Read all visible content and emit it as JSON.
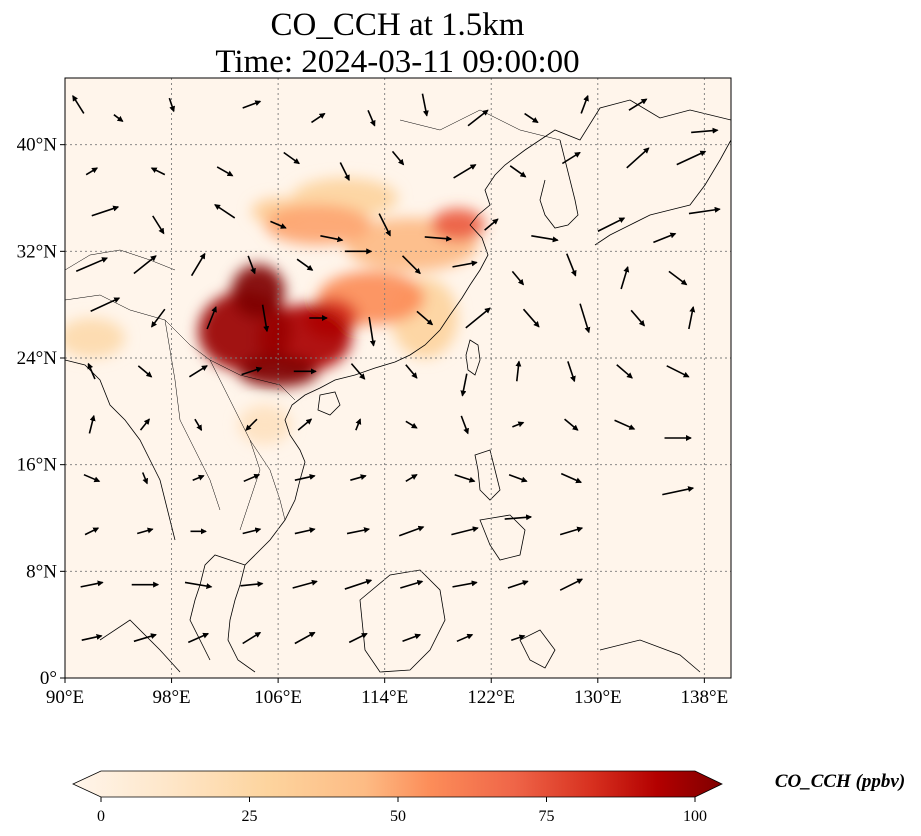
{
  "title": {
    "line1": "CO_CCH at 1.5km",
    "line2": "Time: 2024-03-11 09:00:00"
  },
  "map": {
    "lon_range": [
      90,
      140
    ],
    "lat_range": [
      0,
      45
    ],
    "lon_ticks": [
      {
        "value": 90,
        "label": "90°E"
      },
      {
        "value": 98,
        "label": "98°E"
      },
      {
        "value": 106,
        "label": "106°E"
      },
      {
        "value": 114,
        "label": "114°E"
      },
      {
        "value": 122,
        "label": "122°E"
      },
      {
        "value": 130,
        "label": "130°E"
      },
      {
        "value": 138,
        "label": "138°E"
      }
    ],
    "lat_ticks": [
      {
        "value": 0,
        "label": "0°"
      },
      {
        "value": 8,
        "label": "8°N"
      },
      {
        "value": 16,
        "label": "16°N"
      },
      {
        "value": 24,
        "label": "24°N"
      },
      {
        "value": 32,
        "label": "32°N"
      },
      {
        "value": 40,
        "label": "40°N"
      }
    ],
    "gridlines": "dotted",
    "field_variable": "CO_CCH",
    "wind_vectors": "shown",
    "colormap": "OrRd",
    "colors": {
      "low": "#fff5eb",
      "mid": "#f06a3a",
      "high": "#7f0000",
      "coast": "#000000",
      "grid": "#7a7a7a"
    },
    "plume_regions": [
      {
        "lon": 104.5,
        "lat": 29.0,
        "rx": 2.0,
        "ry": 2.0,
        "value": 100
      },
      {
        "lon": 103.5,
        "lat": 26.0,
        "rx": 3.5,
        "ry": 3.0,
        "value": 95
      },
      {
        "lon": 108.0,
        "lat": 25.5,
        "rx": 3.5,
        "ry": 2.5,
        "value": 92
      },
      {
        "lon": 106.0,
        "lat": 23.0,
        "rx": 3.0,
        "ry": 1.2,
        "value": 100
      },
      {
        "lon": 110.0,
        "lat": 27.0,
        "rx": 2.0,
        "ry": 1.5,
        "value": 80
      },
      {
        "lon": 113.0,
        "lat": 28.5,
        "rx": 4.0,
        "ry": 2.0,
        "value": 55
      },
      {
        "lon": 116.0,
        "lat": 32.5,
        "rx": 5.0,
        "ry": 2.0,
        "value": 45
      },
      {
        "lon": 119.5,
        "lat": 34.0,
        "rx": 2.0,
        "ry": 1.2,
        "value": 70
      },
      {
        "lon": 109.0,
        "lat": 34.0,
        "rx": 4.0,
        "ry": 1.5,
        "value": 50
      },
      {
        "lon": 111.0,
        "lat": 36.0,
        "rx": 4.0,
        "ry": 1.5,
        "value": 30
      },
      {
        "lon": 106.0,
        "lat": 35.0,
        "rx": 2.0,
        "ry": 1.0,
        "value": 35
      },
      {
        "lon": 92.0,
        "lat": 25.5,
        "rx": 2.5,
        "ry": 1.5,
        "value": 25
      },
      {
        "lon": 105.0,
        "lat": 19.0,
        "rx": 2.0,
        "ry": 1.5,
        "value": 18
      },
      {
        "lon": 117.0,
        "lat": 27.0,
        "rx": 2.5,
        "ry": 3.0,
        "value": 30
      }
    ],
    "wind_arrows": [
      {
        "lon": 91,
        "lat": 43,
        "u": -0.5,
        "v": 0.8
      },
      {
        "lon": 94,
        "lat": 42,
        "u": 0.4,
        "v": -0.3
      },
      {
        "lon": 98,
        "lat": 43,
        "u": 0.2,
        "v": -0.6
      },
      {
        "lon": 104,
        "lat": 43,
        "u": 0.8,
        "v": 0.3
      },
      {
        "lon": 109,
        "lat": 42,
        "u": 0.6,
        "v": 0.4
      },
      {
        "lon": 113,
        "lat": 42,
        "u": 0.3,
        "v": -0.7
      },
      {
        "lon": 117,
        "lat": 43,
        "u": 0.2,
        "v": -1.0
      },
      {
        "lon": 121,
        "lat": 42,
        "u": 0.9,
        "v": 0.7
      },
      {
        "lon": 125,
        "lat": 42,
        "u": 0.6,
        "v": -0.4
      },
      {
        "lon": 129,
        "lat": 43,
        "u": 0.3,
        "v": 0.8
      },
      {
        "lon": 133,
        "lat": 43,
        "u": 0.8,
        "v": 0.5
      },
      {
        "lon": 138,
        "lat": 41,
        "u": 1.2,
        "v": 0.1
      },
      {
        "lon": 92,
        "lat": 38,
        "u": 0.5,
        "v": 0.3
      },
      {
        "lon": 97,
        "lat": 38,
        "u": -0.6,
        "v": 0.3
      },
      {
        "lon": 102,
        "lat": 38,
        "u": 0.7,
        "v": -0.4
      },
      {
        "lon": 107,
        "lat": 39,
        "u": 0.7,
        "v": -0.5
      },
      {
        "lon": 111,
        "lat": 38,
        "u": 0.4,
        "v": -0.8
      },
      {
        "lon": 115,
        "lat": 39,
        "u": 0.5,
        "v": -0.6
      },
      {
        "lon": 120,
        "lat": 38,
        "u": 1.0,
        "v": 0.6
      },
      {
        "lon": 124,
        "lat": 38,
        "u": 0.7,
        "v": -0.5
      },
      {
        "lon": 128,
        "lat": 39,
        "u": 0.8,
        "v": 0.5
      },
      {
        "lon": 133,
        "lat": 39,
        "u": 1.0,
        "v": 0.9
      },
      {
        "lon": 137,
        "lat": 39,
        "u": 1.3,
        "v": 0.6
      },
      {
        "lon": 93,
        "lat": 35,
        "u": 1.2,
        "v": 0.4
      },
      {
        "lon": 97,
        "lat": 34,
        "u": 0.5,
        "v": -0.8
      },
      {
        "lon": 102,
        "lat": 35,
        "u": -0.9,
        "v": 0.6
      },
      {
        "lon": 106,
        "lat": 34,
        "u": 0.7,
        "v": -0.3
      },
      {
        "lon": 110,
        "lat": 33,
        "u": 1.0,
        "v": -0.2
      },
      {
        "lon": 114,
        "lat": 34,
        "u": 0.5,
        "v": -1.0
      },
      {
        "lon": 118,
        "lat": 33,
        "u": 1.2,
        "v": -0.1
      },
      {
        "lon": 122,
        "lat": 34,
        "u": 0.6,
        "v": 0.5
      },
      {
        "lon": 126,
        "lat": 33,
        "u": 1.2,
        "v": -0.2
      },
      {
        "lon": 131,
        "lat": 34,
        "u": 1.2,
        "v": 0.6
      },
      {
        "lon": 135,
        "lat": 33,
        "u": 1.0,
        "v": 0.4
      },
      {
        "lon": 138,
        "lat": 35,
        "u": 1.4,
        "v": 0.2
      },
      {
        "lon": 92,
        "lat": 31,
        "u": 1.4,
        "v": 0.6
      },
      {
        "lon": 96,
        "lat": 31,
        "u": 1.0,
        "v": 0.8
      },
      {
        "lon": 100,
        "lat": 31,
        "u": 0.6,
        "v": 1.0
      },
      {
        "lon": 104,
        "lat": 31,
        "u": 0.3,
        "v": -0.8
      },
      {
        "lon": 108,
        "lat": 31,
        "u": 0.7,
        "v": -0.5
      },
      {
        "lon": 112,
        "lat": 32,
        "u": 1.2,
        "v": 0.0
      },
      {
        "lon": 116,
        "lat": 31,
        "u": 0.8,
        "v": -0.8
      },
      {
        "lon": 120,
        "lat": 31,
        "u": 1.1,
        "v": 0.2
      },
      {
        "lon": 124,
        "lat": 30,
        "u": 0.5,
        "v": -0.6
      },
      {
        "lon": 128,
        "lat": 31,
        "u": 0.4,
        "v": -1.0
      },
      {
        "lon": 132,
        "lat": 30,
        "u": 0.3,
        "v": 1.0
      },
      {
        "lon": 136,
        "lat": 30,
        "u": 0.8,
        "v": -0.6
      },
      {
        "lon": 93,
        "lat": 28,
        "u": 1.3,
        "v": 0.6
      },
      {
        "lon": 97,
        "lat": 27,
        "u": -0.6,
        "v": -0.8
      },
      {
        "lon": 101,
        "lat": 27,
        "u": 0.4,
        "v": 1.0
      },
      {
        "lon": 105,
        "lat": 27,
        "u": 0.2,
        "v": -1.2
      },
      {
        "lon": 109,
        "lat": 27,
        "u": 0.8,
        "v": 0.0
      },
      {
        "lon": 113,
        "lat": 26,
        "u": 0.2,
        "v": -1.3
      },
      {
        "lon": 117,
        "lat": 27,
        "u": 0.7,
        "v": -0.6
      },
      {
        "lon": 121,
        "lat": 27,
        "u": 1.1,
        "v": 0.9
      },
      {
        "lon": 125,
        "lat": 27,
        "u": 0.7,
        "v": -0.8
      },
      {
        "lon": 129,
        "lat": 27,
        "u": 0.4,
        "v": -1.3
      },
      {
        "lon": 133,
        "lat": 27,
        "u": 0.6,
        "v": -0.7
      },
      {
        "lon": 137,
        "lat": 27,
        "u": 0.2,
        "v": 1.0
      },
      {
        "lon": 92,
        "lat": 23,
        "u": -0.3,
        "v": 0.7
      },
      {
        "lon": 96,
        "lat": 23,
        "u": 0.6,
        "v": -0.5
      },
      {
        "lon": 100,
        "lat": 23,
        "u": 0.8,
        "v": 0.5
      },
      {
        "lon": 104,
        "lat": 23,
        "u": 0.9,
        "v": 0.3
      },
      {
        "lon": 108,
        "lat": 23,
        "u": 1.0,
        "v": 0.0
      },
      {
        "lon": 112,
        "lat": 23,
        "u": 0.6,
        "v": -0.7
      },
      {
        "lon": 116,
        "lat": 23,
        "u": 0.5,
        "v": -0.6
      },
      {
        "lon": 120,
        "lat": 22,
        "u": -0.2,
        "v": -1.0
      },
      {
        "lon": 124,
        "lat": 23,
        "u": 0.1,
        "v": 0.9
      },
      {
        "lon": 128,
        "lat": 23,
        "u": 0.3,
        "v": -0.9
      },
      {
        "lon": 132,
        "lat": 23,
        "u": 0.7,
        "v": -0.6
      },
      {
        "lon": 136,
        "lat": 23,
        "u": 1.0,
        "v": -0.5
      },
      {
        "lon": 92,
        "lat": 19,
        "u": 0.2,
        "v": 0.8
      },
      {
        "lon": 96,
        "lat": 19,
        "u": 0.4,
        "v": 0.5
      },
      {
        "lon": 100,
        "lat": 19,
        "u": 0.3,
        "v": -0.5
      },
      {
        "lon": 104,
        "lat": 19,
        "u": -0.5,
        "v": -0.5
      },
      {
        "lon": 108,
        "lat": 19,
        "u": 0.6,
        "v": 0.5
      },
      {
        "lon": 112,
        "lat": 19,
        "u": 0.2,
        "v": 0.5
      },
      {
        "lon": 116,
        "lat": 19,
        "u": 0.5,
        "v": -0.3
      },
      {
        "lon": 120,
        "lat": 19,
        "u": 0.3,
        "v": -0.8
      },
      {
        "lon": 124,
        "lat": 19,
        "u": 0.5,
        "v": 0.2
      },
      {
        "lon": 128,
        "lat": 19,
        "u": 0.6,
        "v": -0.5
      },
      {
        "lon": 132,
        "lat": 19,
        "u": 0.9,
        "v": -0.4
      },
      {
        "lon": 136,
        "lat": 18,
        "u": 1.2,
        "v": 0.0
      },
      {
        "lon": 92,
        "lat": 15,
        "u": 0.7,
        "v": -0.3
      },
      {
        "lon": 96,
        "lat": 15,
        "u": 0.2,
        "v": -0.5
      },
      {
        "lon": 100,
        "lat": 15,
        "u": 0.5,
        "v": 0.2
      },
      {
        "lon": 104,
        "lat": 15,
        "u": 0.7,
        "v": 0.3
      },
      {
        "lon": 108,
        "lat": 15,
        "u": 0.9,
        "v": 0.2
      },
      {
        "lon": 112,
        "lat": 15,
        "u": 0.7,
        "v": 0.2
      },
      {
        "lon": 116,
        "lat": 15,
        "u": 0.5,
        "v": 0.3
      },
      {
        "lon": 120,
        "lat": 15,
        "u": 0.9,
        "v": -0.3
      },
      {
        "lon": 124,
        "lat": 15,
        "u": 0.8,
        "v": -0.3
      },
      {
        "lon": 128,
        "lat": 15,
        "u": 0.9,
        "v": -0.4
      },
      {
        "lon": 136,
        "lat": 14,
        "u": 1.4,
        "v": 0.3
      },
      {
        "lon": 92,
        "lat": 11,
        "u": 0.6,
        "v": 0.3
      },
      {
        "lon": 96,
        "lat": 11,
        "u": 0.7,
        "v": 0.2
      },
      {
        "lon": 100,
        "lat": 11,
        "u": 0.7,
        "v": 0.0
      },
      {
        "lon": 104,
        "lat": 11,
        "u": 0.8,
        "v": 0.2
      },
      {
        "lon": 108,
        "lat": 11,
        "u": 0.9,
        "v": 0.2
      },
      {
        "lon": 112,
        "lat": 11,
        "u": 1.0,
        "v": 0.2
      },
      {
        "lon": 116,
        "lat": 11,
        "u": 1.1,
        "v": 0.4
      },
      {
        "lon": 120,
        "lat": 11,
        "u": 1.2,
        "v": 0.3
      },
      {
        "lon": 124,
        "lat": 12,
        "u": 1.2,
        "v": 0.1
      },
      {
        "lon": 128,
        "lat": 11,
        "u": 1.0,
        "v": 0.3
      },
      {
        "lon": 92,
        "lat": 7,
        "u": 1.0,
        "v": 0.2
      },
      {
        "lon": 96,
        "lat": 7,
        "u": 1.2,
        "v": 0.0
      },
      {
        "lon": 100,
        "lat": 7,
        "u": 1.2,
        "v": -0.2
      },
      {
        "lon": 104,
        "lat": 7,
        "u": 1.0,
        "v": 0.1
      },
      {
        "lon": 108,
        "lat": 7,
        "u": 1.1,
        "v": 0.3
      },
      {
        "lon": 112,
        "lat": 7,
        "u": 1.2,
        "v": 0.4
      },
      {
        "lon": 116,
        "lat": 7,
        "u": 1.0,
        "v": 0.3
      },
      {
        "lon": 120,
        "lat": 7,
        "u": 1.1,
        "v": 0.2
      },
      {
        "lon": 124,
        "lat": 7,
        "u": 0.9,
        "v": 0.3
      },
      {
        "lon": 128,
        "lat": 7,
        "u": 1.0,
        "v": 0.5
      },
      {
        "lon": 92,
        "lat": 3,
        "u": 0.9,
        "v": 0.2
      },
      {
        "lon": 96,
        "lat": 3,
        "u": 1.0,
        "v": 0.3
      },
      {
        "lon": 100,
        "lat": 3,
        "u": 0.9,
        "v": 0.4
      },
      {
        "lon": 104,
        "lat": 3,
        "u": 0.8,
        "v": 0.5
      },
      {
        "lon": 108,
        "lat": 3,
        "u": 0.9,
        "v": 0.5
      },
      {
        "lon": 112,
        "lat": 3,
        "u": 0.8,
        "v": 0.4
      },
      {
        "lon": 116,
        "lat": 3,
        "u": 0.8,
        "v": 0.3
      },
      {
        "lon": 120,
        "lat": 3,
        "u": 0.7,
        "v": 0.3
      },
      {
        "lon": 124,
        "lat": 3,
        "u": 0.6,
        "v": 0.2
      }
    ]
  },
  "colorbar": {
    "label": "CO_CCH (ppbv)",
    "range": [
      0,
      100
    ],
    "ticks": [
      {
        "value": 0,
        "label": "0"
      },
      {
        "value": 25,
        "label": "25"
      },
      {
        "value": 50,
        "label": "50"
      },
      {
        "value": 75,
        "label": "75"
      },
      {
        "value": 100,
        "label": "100"
      }
    ],
    "extend": "both"
  }
}
